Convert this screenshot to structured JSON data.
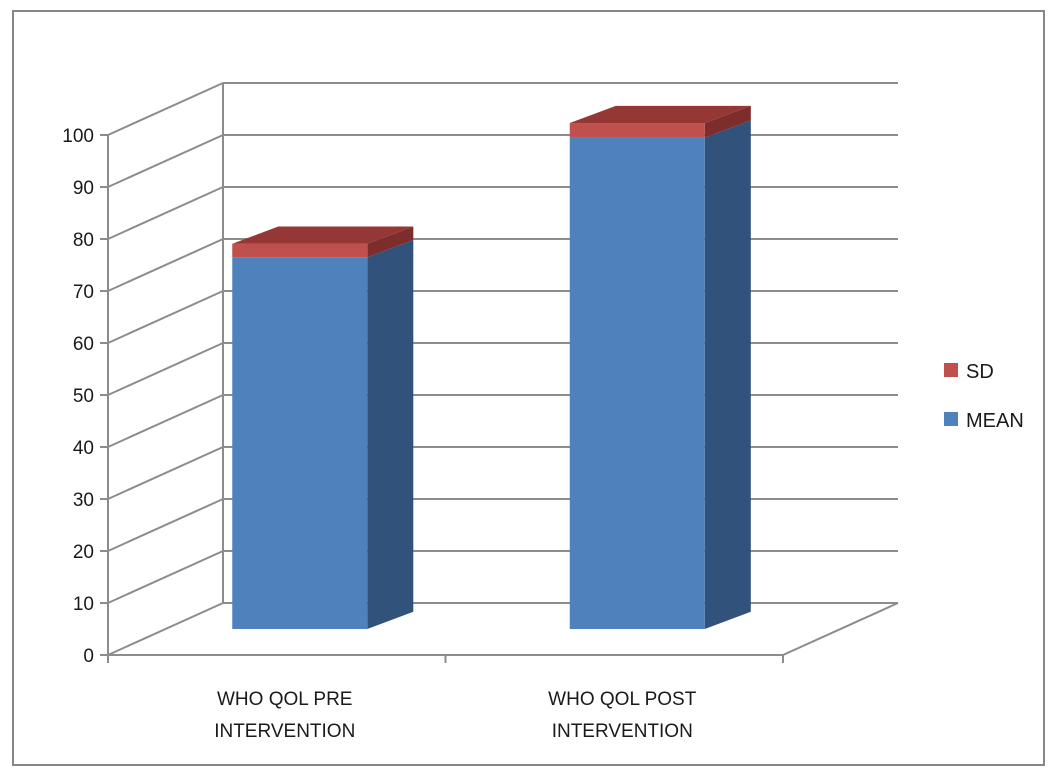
{
  "chart_data": {
    "type": "bar",
    "stacked": true,
    "view": "3d",
    "title": "",
    "xlabel": "",
    "ylabel": "",
    "categories": [
      [
        "WHO QOL PRE",
        "INTERVENTION"
      ],
      [
        "WHO QOL POST",
        "INTERVENTION"
      ]
    ],
    "series": [
      {
        "name": "MEAN",
        "values": [
          71.5,
          94.5
        ],
        "color": "#4f81bd",
        "side_color": "#31527b"
      },
      {
        "name": "SD",
        "values": [
          2.6,
          2.8
        ],
        "color": "#c0504d",
        "top_color": "#953735",
        "side_color": "#7d2e2c"
      }
    ],
    "ylim": [
      0,
      100
    ],
    "yticks": [
      0,
      10,
      20,
      30,
      40,
      50,
      60,
      70,
      80,
      90,
      100
    ],
    "grid": true,
    "legend_position": "right",
    "legend_order": [
      "SD",
      "MEAN"
    ]
  }
}
